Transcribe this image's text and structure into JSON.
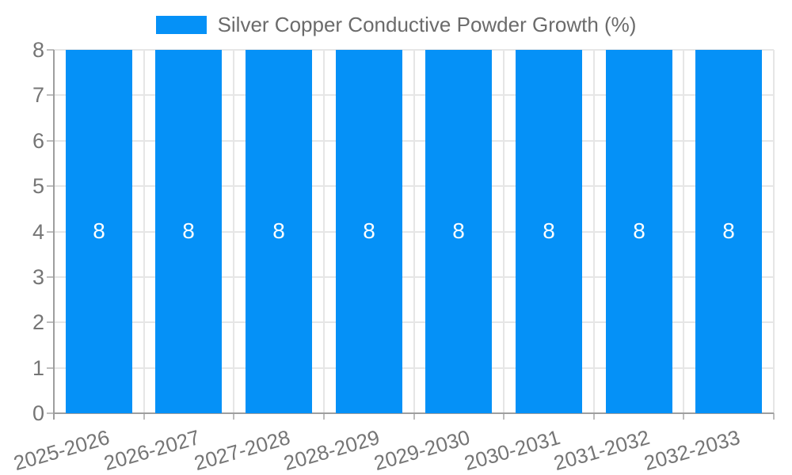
{
  "chart_data": {
    "type": "bar",
    "title": "Silver Copper Conductive Powder Growth (%)",
    "categories": [
      "2025-2026",
      "2026-2027",
      "2027-2028",
      "2028-2029",
      "2029-2030",
      "2030-2031",
      "2031-2032",
      "2032-2033"
    ],
    "series": [
      {
        "name": "Silver Copper Conductive Powder Growth (%)",
        "values": [
          8,
          8,
          8,
          8,
          8,
          8,
          8,
          8
        ]
      }
    ],
    "value_labels": [
      "8",
      "8",
      "8",
      "8",
      "8",
      "8",
      "8",
      "8"
    ],
    "xlabel": "",
    "ylabel": "",
    "ylim": [
      0,
      8
    ],
    "yticks": [
      0,
      1,
      2,
      3,
      4,
      5,
      6,
      7,
      8
    ],
    "grid": true,
    "legend_position": "top",
    "bar_color": "#0591f7",
    "value_label_color": "#ffffff"
  },
  "colors": {
    "background": "#ffffff",
    "gridline": "#e6e6e6",
    "axis_line": "#9e9e9e",
    "tick": "#bdbdbd",
    "axis_text": "#757575",
    "legend_text": "#6b6b6b"
  }
}
